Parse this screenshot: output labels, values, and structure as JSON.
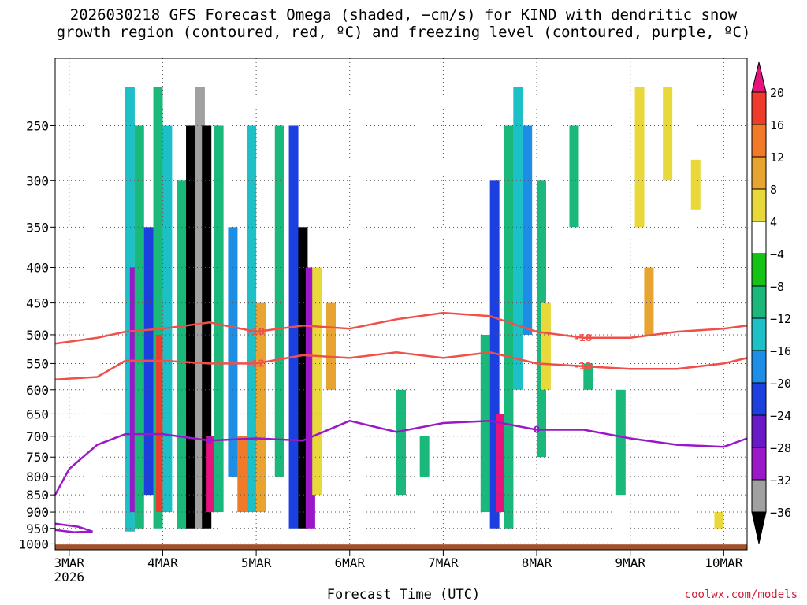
{
  "title_line1": "2026030218 GFS Forecast Omega (shaded, −cm/s) for KIND with dendritic snow",
  "title_line2": "growth region (contoured, red, ºC) and freezing level (contoured, purple, ºC)",
  "credit": "coolwx.com/models",
  "chart_data": {
    "type": "heatmap",
    "title": "2026030218 GFS Forecast Omega (shaded, −cm/s) for KIND with dendritic snow growth region (contoured, red, ºC) and freezing level (contoured, purple, ºC)",
    "xlabel": "Forecast Time (UTC)",
    "ylabel": "",
    "x_ticks": [
      "3MAR",
      "4MAR",
      "5MAR",
      "6MAR",
      "7MAR",
      "8MAR",
      "9MAR",
      "10MAR"
    ],
    "x_year_label": "2026",
    "x_range_days": [
      2.85,
      10.25
    ],
    "y_ticks": [
      250,
      300,
      350,
      400,
      450,
      500,
      550,
      600,
      650,
      700,
      750,
      800,
      850,
      900,
      950,
      1000
    ],
    "y_range_hpa": [
      200,
      1020
    ],
    "y_scale": "log",
    "grid": true,
    "colorbar": {
      "labels": [
        "20",
        "16",
        "12",
        "8",
        "4",
        "−4",
        "−8",
        "−12",
        "−16",
        "−20",
        "−24",
        "−28",
        "−32",
        "−36"
      ],
      "colors": [
        "#e6127e",
        "#ee3b2c",
        "#f07a28",
        "#e8a431",
        "#e8d83a",
        "#ffffff",
        "#14c314",
        "#1ab87a",
        "#1ec0c8",
        "#1d8ee6",
        "#1c3fe0",
        "#6a18c8",
        "#9a18c8",
        "#a0a0a0",
        "#000000"
      ]
    },
    "omega_cells": [
      {
        "t": 3.65,
        "p0": 220,
        "p1": 960,
        "v": -12
      },
      {
        "t": 3.7,
        "p0": 400,
        "p1": 900,
        "v": -28
      },
      {
        "t": 3.75,
        "p0": 250,
        "p1": 950,
        "v": -8
      },
      {
        "t": 3.85,
        "p0": 350,
        "p1": 850,
        "v": -20
      },
      {
        "t": 3.95,
        "p0": 220,
        "p1": 950,
        "v": -8
      },
      {
        "t": 3.98,
        "p0": 500,
        "p1": 900,
        "v": 16
      },
      {
        "t": 4.05,
        "p0": 250,
        "p1": 900,
        "v": -12
      },
      {
        "t": 4.2,
        "p0": 300,
        "p1": 950,
        "v": -8
      },
      {
        "t": 4.3,
        "p0": 250,
        "p1": 950,
        "v": -36
      },
      {
        "t": 4.4,
        "p0": 220,
        "p1": 950,
        "v": -32
      },
      {
        "t": 4.47,
        "p0": 250,
        "p1": 950,
        "v": -36
      },
      {
        "t": 4.52,
        "p0": 700,
        "p1": 900,
        "v": 20
      },
      {
        "t": 4.6,
        "p0": 250,
        "p1": 900,
        "v": -8
      },
      {
        "t": 4.75,
        "p0": 350,
        "p1": 800,
        "v": -16
      },
      {
        "t": 4.85,
        "p0": 700,
        "p1": 900,
        "v": 12
      },
      {
        "t": 4.95,
        "p0": 250,
        "p1": 900,
        "v": -12
      },
      {
        "t": 5.05,
        "p0": 450,
        "p1": 900,
        "v": 8
      },
      {
        "t": 5.25,
        "p0": 250,
        "p1": 800,
        "v": -8
      },
      {
        "t": 5.4,
        "p0": 250,
        "p1": 950,
        "v": -20
      },
      {
        "t": 5.5,
        "p0": 350,
        "p1": 950,
        "v": -36
      },
      {
        "t": 5.58,
        "p0": 400,
        "p1": 950,
        "v": -28
      },
      {
        "t": 5.65,
        "p0": 400,
        "p1": 850,
        "v": 4
      },
      {
        "t": 5.8,
        "p0": 450,
        "p1": 600,
        "v": 8
      },
      {
        "t": 6.55,
        "p0": 600,
        "p1": 850,
        "v": -8
      },
      {
        "t": 6.8,
        "p0": 700,
        "p1": 800,
        "v": -8
      },
      {
        "t": 7.45,
        "p0": 500,
        "p1": 900,
        "v": -8
      },
      {
        "t": 7.55,
        "p0": 300,
        "p1": 950,
        "v": -20
      },
      {
        "t": 7.62,
        "p0": 650,
        "p1": 900,
        "v": 20
      },
      {
        "t": 7.7,
        "p0": 250,
        "p1": 950,
        "v": -8
      },
      {
        "t": 7.8,
        "p0": 220,
        "p1": 600,
        "v": -12
      },
      {
        "t": 7.9,
        "p0": 250,
        "p1": 500,
        "v": -16
      },
      {
        "t": 8.05,
        "p0": 300,
        "p1": 750,
        "v": -8
      },
      {
        "t": 8.1,
        "p0": 450,
        "p1": 600,
        "v": 4
      },
      {
        "t": 8.4,
        "p0": 250,
        "p1": 350,
        "v": -8
      },
      {
        "t": 8.55,
        "p0": 550,
        "p1": 600,
        "v": -8
      },
      {
        "t": 8.9,
        "p0": 600,
        "p1": 850,
        "v": -8
      },
      {
        "t": 9.1,
        "p0": 220,
        "p1": 350,
        "v": 4
      },
      {
        "t": 9.2,
        "p0": 400,
        "p1": 500,
        "v": 8
      },
      {
        "t": 9.4,
        "p0": 220,
        "p1": 300,
        "v": 4
      },
      {
        "t": 9.7,
        "p0": 280,
        "p1": 330,
        "v": 4
      },
      {
        "t": 9.95,
        "p0": 900,
        "p1": 950,
        "v": 4
      }
    ],
    "contours": [
      {
        "label": "-18",
        "color": "#f0504a",
        "points": [
          [
            2.85,
            515
          ],
          [
            3.3,
            505
          ],
          [
            3.6,
            495
          ],
          [
            4.0,
            490
          ],
          [
            4.5,
            480
          ],
          [
            5.0,
            495
          ],
          [
            5.5,
            485
          ],
          [
            6.0,
            490
          ],
          [
            6.5,
            475
          ],
          [
            7.0,
            465
          ],
          [
            7.5,
            470
          ],
          [
            8.0,
            495
          ],
          [
            8.5,
            505
          ],
          [
            9.0,
            505
          ],
          [
            9.5,
            495
          ],
          [
            10.0,
            490
          ],
          [
            10.25,
            485
          ]
        ]
      },
      {
        "label": "-12",
        "color": "#f0504a",
        "points": [
          [
            2.85,
            580
          ],
          [
            3.3,
            575
          ],
          [
            3.6,
            545
          ],
          [
            4.0,
            545
          ],
          [
            4.5,
            550
          ],
          [
            5.0,
            550
          ],
          [
            5.5,
            535
          ],
          [
            6.0,
            540
          ],
          [
            6.5,
            530
          ],
          [
            7.0,
            540
          ],
          [
            7.5,
            530
          ],
          [
            8.0,
            550
          ],
          [
            8.5,
            555
          ],
          [
            9.0,
            560
          ],
          [
            9.5,
            560
          ],
          [
            10.0,
            550
          ],
          [
            10.25,
            540
          ]
        ]
      },
      {
        "label": "0",
        "color": "#9a18c8",
        "points": [
          [
            2.85,
            850
          ],
          [
            3.0,
            780
          ],
          [
            3.3,
            720
          ],
          [
            3.6,
            695
          ],
          [
            4.0,
            695
          ],
          [
            4.5,
            710
          ],
          [
            5.0,
            705
          ],
          [
            5.5,
            710
          ],
          [
            6.0,
            665
          ],
          [
            6.5,
            690
          ],
          [
            7.0,
            670
          ],
          [
            7.5,
            665
          ],
          [
            8.0,
            685
          ],
          [
            8.5,
            685
          ],
          [
            9.0,
            705
          ],
          [
            9.5,
            720
          ],
          [
            10.0,
            725
          ],
          [
            10.25,
            705
          ]
        ]
      },
      {
        "label": "",
        "color": "#9a18c8",
        "points": [
          [
            2.85,
            935
          ],
          [
            3.1,
            945
          ],
          [
            3.25,
            960
          ],
          [
            3.05,
            962
          ],
          [
            2.85,
            955
          ]
        ]
      }
    ]
  }
}
